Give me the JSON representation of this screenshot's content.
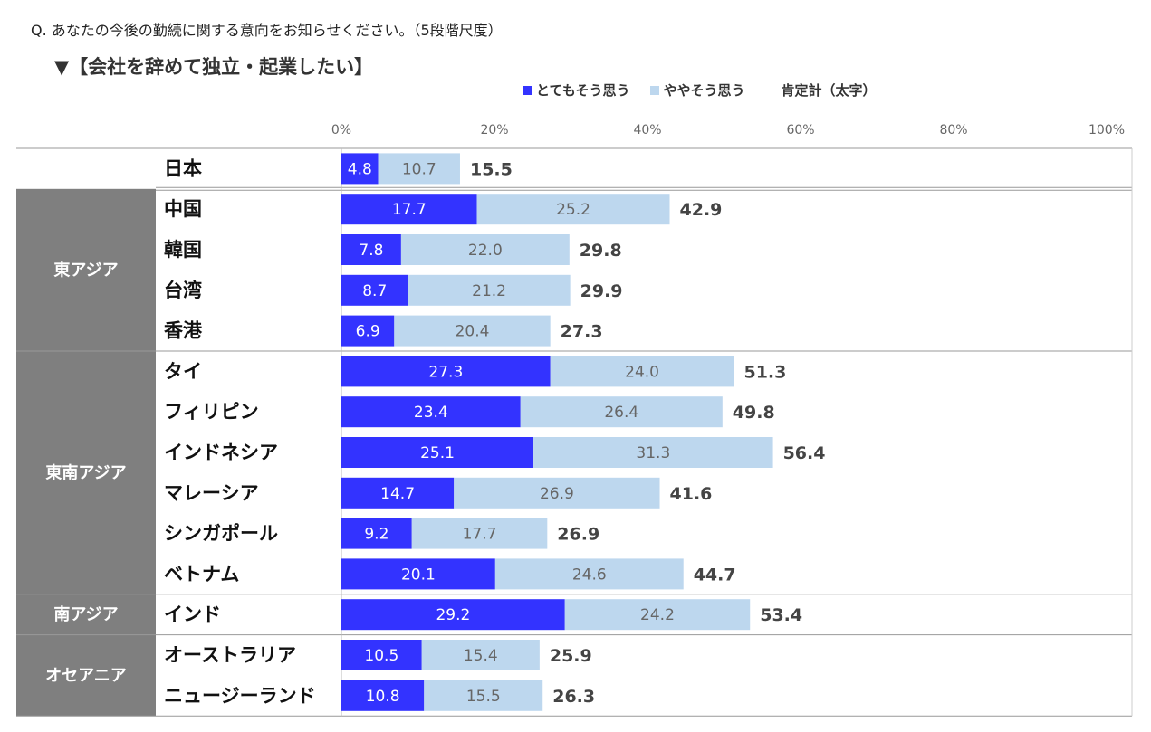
{
  "question": "Q. あなたの今後の勤続に関する意向をお知らせください。（5段階尺度）",
  "subtitle": "▼【会社を辞めて独立・起業したい】",
  "legend": {
    "series1": "とてもそう思う",
    "series2": "ややそう思う",
    "total": "肯定計（太字）"
  },
  "colors": {
    "series1": "#3333ff",
    "series2": "#bdd7ee",
    "region_bg": "#7f7f7f",
    "grid": "#999999"
  },
  "chart_data": {
    "type": "bar",
    "orientation": "horizontal",
    "stacked": true,
    "xlim": [
      0,
      100
    ],
    "x_ticks": [
      "0%",
      "20%",
      "40%",
      "60%",
      "80%",
      "100%"
    ],
    "categories": [
      "日本",
      "中国",
      "韓国",
      "台湾",
      "香港",
      "タイ",
      "フィリピン",
      "インドネシア",
      "マレーシア",
      "シンガポール",
      "ベトナム",
      "インド",
      "オーストラリア",
      "ニュージーランド"
    ],
    "series": [
      {
        "name": "とてもそう思う",
        "values": [
          4.8,
          17.7,
          7.8,
          8.7,
          6.9,
          27.3,
          23.4,
          25.1,
          14.7,
          9.2,
          20.1,
          29.2,
          10.5,
          10.8
        ]
      },
      {
        "name": "ややそう思う",
        "values": [
          10.7,
          25.2,
          22.0,
          21.2,
          20.4,
          24.0,
          26.4,
          31.3,
          26.9,
          17.7,
          24.6,
          24.2,
          15.4,
          15.5
        ]
      }
    ],
    "totals": [
      15.5,
      42.9,
      29.8,
      29.9,
      27.3,
      51.3,
      49.8,
      56.4,
      41.6,
      26.9,
      44.7,
      53.4,
      25.9,
      26.3
    ],
    "groups": [
      {
        "label": "",
        "categories": [
          "日本"
        ]
      },
      {
        "label": "東アジア",
        "categories": [
          "中国",
          "韓国",
          "台湾",
          "香港"
        ]
      },
      {
        "label": "東南アジア",
        "categories": [
          "タイ",
          "フィリピン",
          "インドネシア",
          "マレーシア",
          "シンガポール",
          "ベトナム"
        ]
      },
      {
        "label": "南アジア",
        "categories": [
          "インド"
        ]
      },
      {
        "label": "オセアニア",
        "categories": [
          "オーストラリア",
          "ニュージーランド"
        ]
      }
    ]
  }
}
